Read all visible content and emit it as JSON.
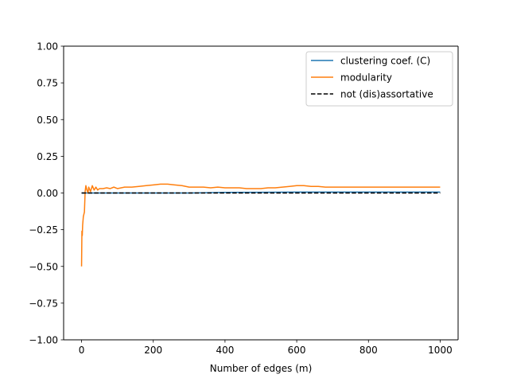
{
  "chart_data": {
    "type": "line",
    "title": "",
    "xlabel": "Number of edges (m)",
    "ylabel": "",
    "xlim": [
      -50,
      1050
    ],
    "ylim": [
      -1.0,
      1.0
    ],
    "xticks": [
      0,
      200,
      400,
      600,
      800,
      1000
    ],
    "xtick_labels": [
      "0",
      "200",
      "400",
      "600",
      "800",
      "1000"
    ],
    "yticks": [
      -1.0,
      -0.75,
      -0.5,
      -0.25,
      0.0,
      0.25,
      0.5,
      0.75,
      1.0
    ],
    "ytick_labels": [
      "−1.00",
      "−0.75",
      "−0.50",
      "−0.25",
      "0.00",
      "0.25",
      "0.50",
      "0.75",
      "1.00"
    ],
    "grid": false,
    "legend_position": "top-right",
    "series": [
      {
        "name": "clustering coef. (C)",
        "color": "#1f77b4",
        "style": "solid",
        "x": [
          0,
          50,
          100,
          200,
          300,
          400,
          500,
          600,
          700,
          800,
          900,
          1000
        ],
        "y": [
          0.0,
          0.0,
          0.0,
          0.0,
          0.0,
          0.004,
          0.005,
          0.006,
          0.006,
          0.006,
          0.006,
          0.006
        ]
      },
      {
        "name": "modularity",
        "color": "#ff7f0e",
        "style": "solid",
        "x": [
          0,
          1,
          2,
          3,
          5,
          8,
          10,
          12,
          15,
          18,
          20,
          25,
          30,
          35,
          40,
          45,
          50,
          60,
          70,
          80,
          90,
          100,
          120,
          140,
          160,
          180,
          200,
          220,
          240,
          260,
          280,
          300,
          320,
          340,
          360,
          380,
          400,
          420,
          440,
          460,
          480,
          500,
          520,
          540,
          560,
          580,
          600,
          620,
          640,
          660,
          680,
          700,
          720,
          740,
          760,
          780,
          800,
          820,
          840,
          860,
          880,
          900,
          920,
          940,
          960,
          980,
          1000
        ],
        "y": [
          -0.5,
          -0.26,
          -0.29,
          -0.22,
          -0.16,
          -0.13,
          0.01,
          0.05,
          0.02,
          0.0,
          0.04,
          0.01,
          0.05,
          0.02,
          0.04,
          0.02,
          0.03,
          0.03,
          0.035,
          0.03,
          0.04,
          0.03,
          0.04,
          0.04,
          0.045,
          0.05,
          0.055,
          0.06,
          0.06,
          0.055,
          0.05,
          0.04,
          0.04,
          0.04,
          0.035,
          0.04,
          0.035,
          0.035,
          0.035,
          0.03,
          0.03,
          0.03,
          0.035,
          0.035,
          0.04,
          0.045,
          0.05,
          0.05,
          0.045,
          0.045,
          0.04,
          0.04,
          0.04,
          0.04,
          0.04,
          0.04,
          0.04,
          0.04,
          0.04,
          0.04,
          0.04,
          0.04,
          0.04,
          0.04,
          0.04,
          0.04,
          0.04
        ]
      },
      {
        "name": "not (dis)assortative",
        "color": "#000000",
        "style": "dashed",
        "x": [
          0,
          1000
        ],
        "y": [
          0.0,
          0.0
        ]
      }
    ]
  }
}
